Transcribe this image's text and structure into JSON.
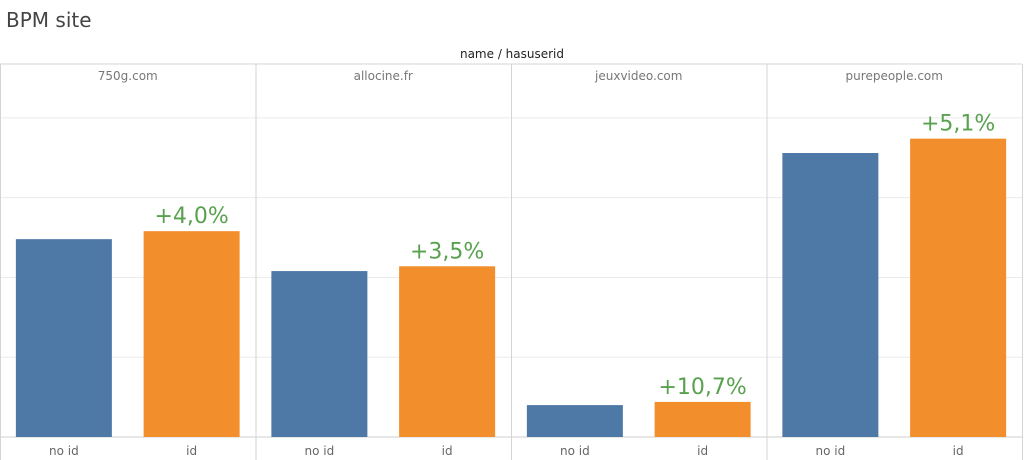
{
  "page_title": "BPM site",
  "chart_data": {
    "type": "bar",
    "title": "BPM site",
    "header": "name / hasuserid",
    "panels": [
      {
        "name": "750g.com",
        "values": [
          124,
          129
        ],
        "delta": "+4,0%"
      },
      {
        "name": "allocine.fr",
        "values": [
          104,
          107
        ],
        "delta": "+3,5%"
      },
      {
        "name": "jeuxvideo.com",
        "values": [
          20,
          22
        ],
        "delta": "+10,7%"
      },
      {
        "name": "purepeople.com",
        "values": [
          178,
          187
        ],
        "delta": "+5,1%"
      }
    ],
    "categories": [
      "no id",
      "id"
    ],
    "ylim": [
      0,
      220
    ],
    "grid": true,
    "colors": {
      "no id": "#4e79a7",
      "id": "#f28e2b",
      "delta": "#59a14f"
    }
  }
}
